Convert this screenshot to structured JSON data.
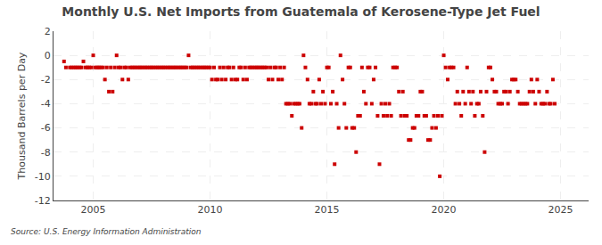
{
  "chart_data": {
    "type": "scatter",
    "title": "Monthly U.S. Net Imports from Guatemala of Kerosene-Type Jet Fuel",
    "ylabel": "Thousand Barrels per Day",
    "source": "Source: U.S. Energy Information Administration",
    "color": "#cc0000",
    "marker": "square",
    "grid": true,
    "xlim": [
      2003.3,
      2026.2
    ],
    "xticks": [
      2005,
      2010,
      2015,
      2020,
      2025
    ],
    "ylim": [
      -12,
      2
    ],
    "yticks": [
      2,
      0,
      -2,
      -4,
      -6,
      -8,
      -10,
      -12
    ],
    "x": [
      2003.75,
      2003.83,
      2004.0,
      2004.08,
      2004.17,
      2004.25,
      2004.33,
      2004.42,
      2004.5,
      2004.58,
      2004.67,
      2004.75,
      2004.83,
      2004.92,
      2005.0,
      2005.08,
      2005.17,
      2005.25,
      2005.33,
      2005.42,
      2005.5,
      2005.58,
      2005.67,
      2005.75,
      2005.83,
      2005.92,
      2006.0,
      2006.08,
      2006.17,
      2006.25,
      2006.33,
      2006.42,
      2006.5,
      2006.58,
      2006.67,
      2006.75,
      2006.83,
      2006.92,
      2007.0,
      2007.08,
      2007.17,
      2007.25,
      2007.33,
      2007.42,
      2007.5,
      2007.58,
      2007.67,
      2007.75,
      2007.83,
      2007.92,
      2008.0,
      2008.08,
      2008.17,
      2008.25,
      2008.33,
      2008.42,
      2008.5,
      2008.58,
      2008.67,
      2008.75,
      2008.83,
      2008.92,
      2009.0,
      2009.08,
      2009.17,
      2009.25,
      2009.33,
      2009.42,
      2009.5,
      2009.58,
      2009.67,
      2009.75,
      2009.83,
      2009.92,
      2010.0,
      2010.08,
      2010.17,
      2010.25,
      2010.33,
      2010.42,
      2010.5,
      2010.58,
      2010.67,
      2010.75,
      2010.83,
      2010.92,
      2011.0,
      2011.08,
      2011.17,
      2011.25,
      2011.33,
      2011.42,
      2011.5,
      2011.58,
      2011.67,
      2011.75,
      2011.83,
      2011.92,
      2012.0,
      2012.08,
      2012.17,
      2012.25,
      2012.33,
      2012.42,
      2012.5,
      2012.58,
      2012.67,
      2012.75,
      2012.83,
      2012.92,
      2013.0,
      2013.08,
      2013.17,
      2013.25,
      2013.33,
      2013.42,
      2013.5,
      2013.58,
      2013.67,
      2013.75,
      2013.83,
      2013.92,
      2014.0,
      2014.08,
      2014.17,
      2014.25,
      2014.33,
      2014.42,
      2014.5,
      2014.58,
      2014.67,
      2014.75,
      2014.83,
      2014.92,
      2015.0,
      2015.08,
      2015.17,
      2015.25,
      2015.33,
      2015.42,
      2015.5,
      2015.58,
      2015.67,
      2015.75,
      2015.83,
      2015.92,
      2016.0,
      2016.08,
      2016.17,
      2016.25,
      2016.33,
      2016.42,
      2016.5,
      2016.58,
      2016.67,
      2016.75,
      2016.83,
      2016.92,
      2017.0,
      2017.08,
      2017.17,
      2017.25,
      2017.33,
      2017.42,
      2017.5,
      2017.58,
      2017.67,
      2017.75,
      2017.83,
      2017.92,
      2018.0,
      2018.08,
      2018.17,
      2018.25,
      2018.33,
      2018.42,
      2018.5,
      2018.58,
      2018.67,
      2018.75,
      2018.83,
      2018.92,
      2019.0,
      2019.08,
      2019.17,
      2019.25,
      2019.33,
      2019.42,
      2019.5,
      2019.58,
      2019.67,
      2019.75,
      2019.83,
      2019.92,
      2020.0,
      2020.08,
      2020.17,
      2020.25,
      2020.33,
      2020.42,
      2020.5,
      2020.58,
      2020.67,
      2020.75,
      2020.83,
      2020.92,
      2021.0,
      2021.08,
      2021.17,
      2021.25,
      2021.33,
      2021.42,
      2021.5,
      2021.58,
      2021.67,
      2021.75,
      2021.83,
      2021.92,
      2022.0,
      2022.08,
      2022.17,
      2022.25,
      2022.33,
      2022.42,
      2022.5,
      2022.58,
      2022.67,
      2022.75,
      2022.83,
      2022.92,
      2023.0,
      2023.08,
      2023.17,
      2023.25,
      2023.33,
      2023.42,
      2023.5,
      2023.58,
      2023.67,
      2023.75,
      2023.83,
      2023.92,
      2024.0,
      2024.08,
      2024.17,
      2024.25,
      2024.33,
      2024.42,
      2024.5,
      2024.58,
      2024.67,
      2024.75
    ],
    "values": [
      -0.5,
      -1.0,
      -1.0,
      -1.0,
      -1.0,
      -1.0,
      -1.0,
      -1.0,
      -1.0,
      -0.5,
      -1.0,
      -1.0,
      -1.0,
      -1.0,
      0.0,
      -1.0,
      -1.0,
      -1.0,
      -1.0,
      -1.0,
      -2.0,
      -1.0,
      -3.0,
      -1.0,
      -3.0,
      -1.0,
      0.0,
      -1.0,
      -1.0,
      -2.0,
      -1.0,
      -1.0,
      -2.0,
      -1.0,
      -1.0,
      -1.0,
      -1.0,
      -1.0,
      -1.0,
      -1.0,
      -1.0,
      -1.0,
      -1.0,
      -1.0,
      -1.0,
      -1.0,
      -1.0,
      -1.0,
      -1.0,
      -1.0,
      -1.0,
      -1.0,
      -1.0,
      -1.0,
      -1.0,
      -1.0,
      -1.0,
      -1.0,
      -1.0,
      -1.0,
      -1.0,
      -1.0,
      -1.0,
      0.0,
      -1.0,
      -1.0,
      -1.0,
      -1.0,
      -1.0,
      -1.0,
      -1.0,
      -1.0,
      -1.0,
      -1.0,
      -1.0,
      -2.0,
      -1.0,
      -2.0,
      -2.0,
      -1.0,
      -2.0,
      -1.0,
      -2.0,
      -1.0,
      -1.0,
      -2.0,
      -1.0,
      -2.0,
      -2.0,
      -1.0,
      -1.0,
      -2.0,
      -1.0,
      -2.0,
      -1.0,
      -1.0,
      -1.0,
      -1.0,
      -1.0,
      -1.0,
      -1.0,
      -1.0,
      -1.0,
      -1.0,
      -2.0,
      -1.0,
      -2.0,
      -1.0,
      -1.0,
      -2.0,
      -1.0,
      -2.0,
      -1.0,
      -4.0,
      -4.0,
      -4.0,
      -5.0,
      -4.0,
      -4.0,
      -4.0,
      -4.0,
      -6.0,
      0.0,
      -1.0,
      -2.0,
      -4.0,
      -4.0,
      -3.0,
      -4.0,
      -4.0,
      -2.0,
      -4.0,
      -3.0,
      -4.0,
      -1.0,
      -1.0,
      -4.0,
      -3.0,
      -9.0,
      -4.0,
      -6.0,
      0.0,
      -2.0,
      -4.0,
      -6.0,
      -1.0,
      -1.0,
      -6.0,
      -6.0,
      -8.0,
      -5.0,
      -5.0,
      -1.0,
      -3.0,
      -4.0,
      -1.0,
      -1.0,
      -4.0,
      -2.0,
      -1.0,
      -5.0,
      -9.0,
      -4.0,
      -5.0,
      -4.0,
      -5.0,
      -4.0,
      -5.0,
      -1.0,
      -1.0,
      -1.0,
      -3.0,
      -5.0,
      -3.0,
      -5.0,
      -5.0,
      -7.0,
      -7.0,
      -6.0,
      -6.0,
      -5.0,
      -5.0,
      -3.0,
      -3.0,
      -5.0,
      -5.0,
      -7.0,
      -7.0,
      -6.0,
      -5.0,
      -6.0,
      -5.0,
      -10.0,
      -5.0,
      0.0,
      -1.0,
      -2.0,
      -1.0,
      -1.0,
      -1.0,
      -4.0,
      -3.0,
      -4.0,
      -5.0,
      -3.0,
      -4.0,
      -1.0,
      -3.0,
      -4.0,
      -3.0,
      -5.0,
      -4.0,
      -4.0,
      -3.0,
      -5.0,
      -8.0,
      -3.0,
      -1.0,
      -1.0,
      -2.0,
      -3.0,
      -3.0,
      -4.0,
      -4.0,
      -4.0,
      -3.0,
      -3.0,
      -4.0,
      -3.0,
      -2.0,
      -2.0,
      -2.0,
      -3.0,
      -4.0,
      -4.0,
      -4.0,
      -4.0,
      -4.0,
      -3.0,
      -2.0,
      -3.0,
      -4.0,
      -2.0,
      -3.0,
      -4.0,
      -4.0,
      -4.0,
      -3.0,
      -4.0,
      -4.0,
      -2.0,
      -4.0
    ]
  }
}
